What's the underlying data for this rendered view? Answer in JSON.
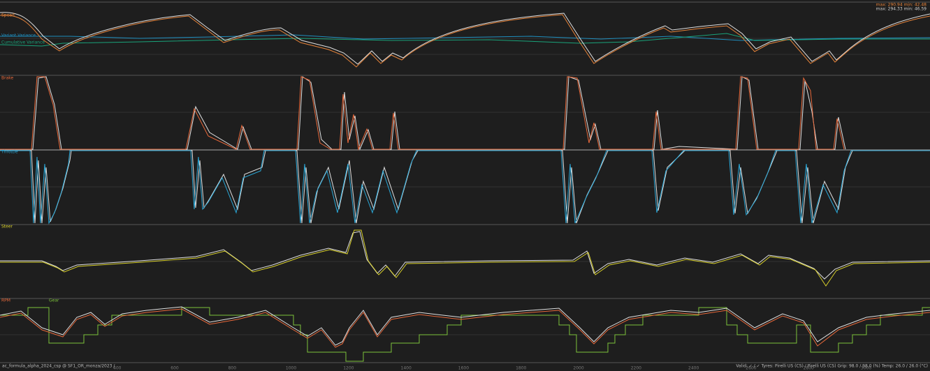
{
  "header": {
    "stats": [
      "max: 290.94 min: 42.48",
      "max: 294.33 min: 46.59"
    ]
  },
  "panels": [
    {
      "label": "Speed",
      "extra": [
        "Variant Variance",
        "Cumulative Variance"
      ]
    },
    {
      "label": "Brake"
    },
    {
      "label": "Throttle"
    },
    {
      "label": "Steer"
    },
    {
      "label": "RPM",
      "extra": [
        "Gear"
      ]
    }
  ],
  "x_axis": {
    "ticks": [
      "400",
      "600",
      "800",
      "1000",
      "1200",
      "1400",
      "1600",
      "1800",
      "2000",
      "2200",
      "2400",
      "2600",
      "2800",
      "3000"
    ]
  },
  "footer": {
    "left": "ac_formula_alpha_2024_csp @ SF1_OR_monza/2023 /",
    "right": "Valid: ✓ / ✓   Tyres: Pirelli US (CS) / Pirelli US (CS)   Grip: 98.0 / 98.0 (%)   Temp: 26.0 / 26.0 (°C)"
  }
}
